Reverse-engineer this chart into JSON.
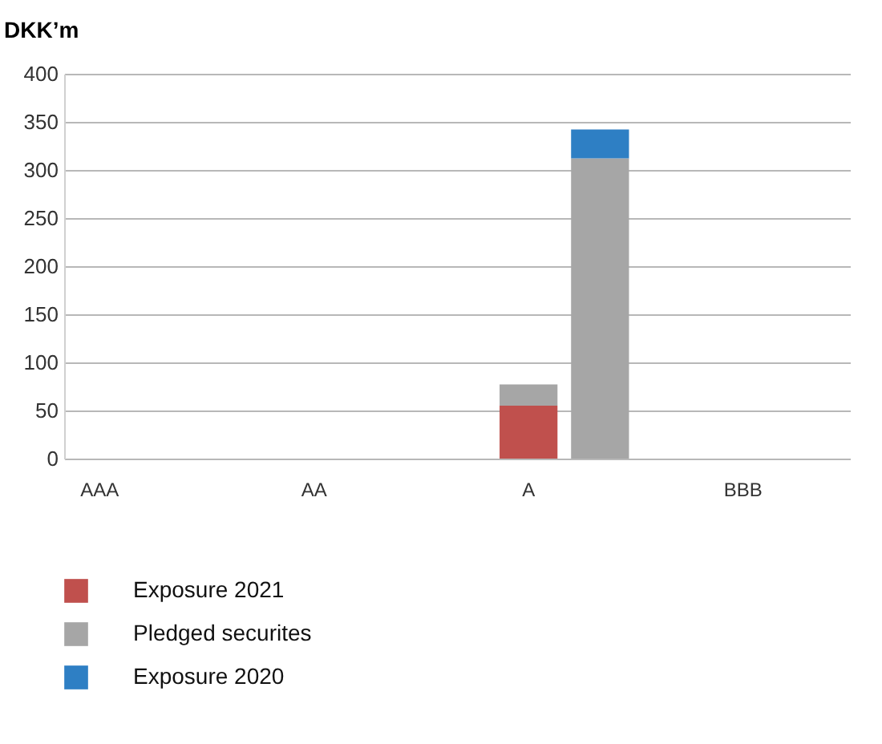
{
  "chart_data": {
    "type": "bar",
    "ylabel": "DKK’m",
    "categories": [
      "AAA",
      null,
      null,
      "AA",
      null,
      null,
      "A",
      null,
      null,
      "BBB",
      null
    ],
    "series": [
      {
        "name": "Exposure 2021",
        "color": "#c0504d",
        "values": [
          null,
          null,
          null,
          null,
          null,
          null,
          55,
          null,
          null,
          null,
          null
        ]
      },
      {
        "name": "Pledged securites",
        "color": "#a6a6a6",
        "values": [
          null,
          null,
          null,
          null,
          null,
          null,
          22,
          312,
          null,
          null,
          null
        ]
      },
      {
        "name": "Exposure 2020",
        "color": "#2e7fc4",
        "values": [
          null,
          null,
          null,
          null,
          null,
          null,
          null,
          30,
          null,
          null,
          null
        ]
      }
    ],
    "stacked": true,
    "ylim": [
      0,
      400
    ],
    "yticks": [
      0,
      50,
      100,
      150,
      200,
      250,
      300,
      350,
      400
    ],
    "grid": "y",
    "legend": "bottom left"
  }
}
